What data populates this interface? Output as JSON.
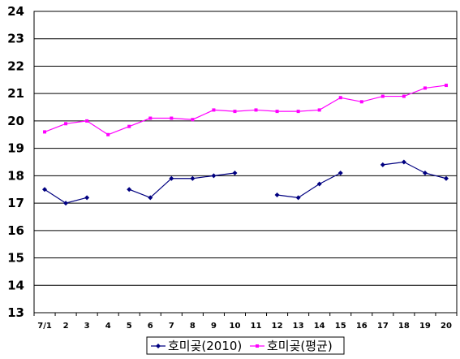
{
  "chart_data": {
    "type": "line",
    "categories": [
      "7/1",
      "2",
      "3",
      "4",
      "5",
      "6",
      "7",
      "8",
      "9",
      "10",
      "11",
      "12",
      "13",
      "14",
      "15",
      "16",
      "17",
      "18",
      "19",
      "20"
    ],
    "ylim": [
      13,
      24
    ],
    "yticks": [
      13,
      14,
      15,
      16,
      17,
      18,
      19,
      20,
      21,
      22,
      23,
      24
    ],
    "grid": "horizontal",
    "legend_position": "bottom",
    "series": [
      {
        "name": "호미곶(2010)",
        "color": "#000080",
        "marker": "diamond",
        "values": [
          17.5,
          17.0,
          17.2,
          null,
          17.5,
          17.2,
          17.9,
          17.9,
          18.0,
          18.1,
          null,
          17.3,
          17.2,
          17.7,
          18.1,
          null,
          18.4,
          18.5,
          18.1,
          17.9
        ]
      },
      {
        "name": "호미곶(평균)",
        "color": "#ff00ff",
        "marker": "square",
        "values": [
          19.6,
          19.9,
          20.0,
          19.5,
          19.8,
          20.1,
          20.1,
          20.05,
          20.4,
          20.35,
          20.4,
          20.35,
          20.35,
          20.4,
          20.85,
          20.7,
          20.9,
          20.9,
          21.2,
          21.3
        ]
      }
    ]
  }
}
